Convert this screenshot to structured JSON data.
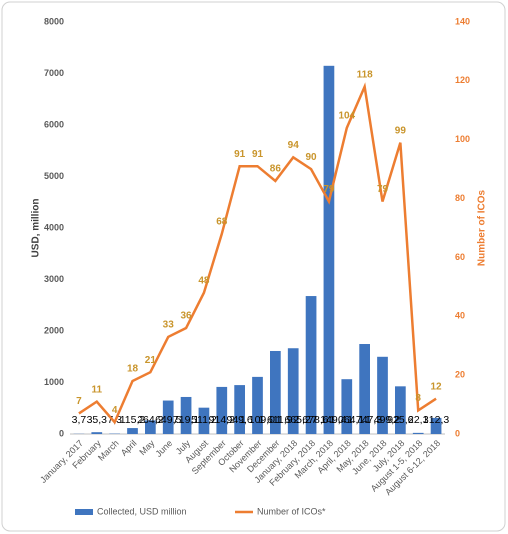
{
  "chart_data": {
    "type": "bar",
    "categories": [
      "January, 2017",
      "February",
      "March",
      "April",
      "May",
      "June",
      "July",
      "August",
      "September",
      "October",
      "November",
      "December",
      "January, 2018",
      "February, 2018",
      "March, 2018",
      "April, 2018",
      "May, 2018",
      "June, 2018",
      "July, 2018",
      "August 1-5, 2018",
      "August 6-12, 2018"
    ],
    "series": [
      {
        "name": "Collected, USD million",
        "type": "bar",
        "axis": "y",
        "color": "#3f75bf",
        "values": [
          3.7,
          35.3,
          7.3,
          115.2,
          264.2,
          649.5,
          719.1,
          511.2,
          914.2,
          949.6,
          1109.0,
          1611.9,
          1665.2,
          2678.6,
          7149.4,
          1064.1,
          1747.3,
          1499.2,
          925.6,
          22.1,
          312.3
        ],
        "value_labels": [
          "3,7",
          "35,3",
          "7,3",
          "115,2",
          "264,2",
          "649,5",
          "719,1",
          "511,2",
          "914,2",
          "949,6",
          "1 109,0",
          "1 611,9",
          "1 665,2",
          "2 678,6",
          "7 149,4",
          "1 064,1",
          "1 747,3",
          "1 499,2",
          "925,6",
          "22,1",
          "312,3"
        ]
      },
      {
        "name": "Number of ICOs*",
        "type": "line",
        "axis": "y2",
        "color": "#ed7d31",
        "values": [
          7,
          11,
          4,
          18,
          21,
          33,
          36,
          48,
          68,
          91,
          91,
          86,
          94,
          90,
          79,
          104,
          118,
          79,
          99,
          8,
          12
        ]
      }
    ],
    "y_label": "USD, million",
    "y2_label": "Number of ICOs",
    "ylim": [
      0,
      8000
    ],
    "yticks": [
      0,
      1000,
      2000,
      3000,
      4000,
      5000,
      6000,
      7000,
      8000
    ],
    "y2lim": [
      0,
      140
    ],
    "y2ticks": [
      0,
      20,
      40,
      60,
      80,
      100,
      120,
      140
    ],
    "grid": false,
    "legend": "bottom"
  }
}
